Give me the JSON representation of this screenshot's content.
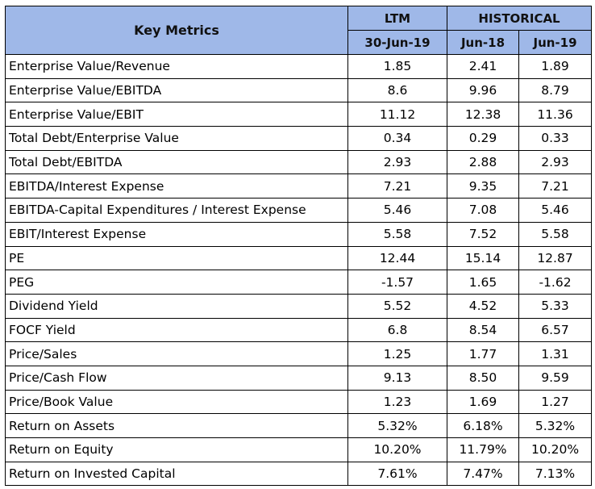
{
  "header": {
    "key_metrics": "Key Metrics",
    "ltm": "LTM",
    "historical": "HISTORICAL",
    "ltm_date": "30-Jun-19",
    "hist_col1": "Jun-18",
    "hist_col2": "Jun-19"
  },
  "rows": [
    {
      "metric": "Enterprise Value/Revenue",
      "ltm": "1.85",
      "jun18": "2.41",
      "jun19": "1.89"
    },
    {
      "metric": "Enterprise Value/EBITDA",
      "ltm": "8.6",
      "jun18": "9.96",
      "jun19": "8.79"
    },
    {
      "metric": "Enterprise Value/EBIT",
      "ltm": "11.12",
      "jun18": "12.38",
      "jun19": "11.36"
    },
    {
      "metric": "Total Debt/Enterprise Value",
      "ltm": "0.34",
      "jun18": "0.29",
      "jun19": "0.33"
    },
    {
      "metric": "Total Debt/EBITDA",
      "ltm": "2.93",
      "jun18": "2.88",
      "jun19": "2.93"
    },
    {
      "metric": "EBITDA/Interest Expense",
      "ltm": "7.21",
      "jun18": "9.35",
      "jun19": "7.21"
    },
    {
      "metric": "EBITDA-Capital Expenditures / Interest Expense",
      "ltm": "5.46",
      "jun18": "7.08",
      "jun19": "5.46"
    },
    {
      "metric": "EBIT/Interest Expense",
      "ltm": "5.58",
      "jun18": "7.52",
      "jun19": "5.58"
    },
    {
      "metric": "PE",
      "ltm": "12.44",
      "jun18": "15.14",
      "jun19": "12.87"
    },
    {
      "metric": "PEG",
      "ltm": "-1.57",
      "jun18": "1.65",
      "jun19": "-1.62"
    },
    {
      "metric": "Dividend Yield",
      "ltm": "5.52",
      "jun18": "4.52",
      "jun19": "5.33"
    },
    {
      "metric": "FOCF Yield",
      "ltm": "6.8",
      "jun18": "8.54",
      "jun19": "6.57"
    },
    {
      "metric": "Price/Sales",
      "ltm": "1.25",
      "jun18": "1.77",
      "jun19": "1.31"
    },
    {
      "metric": "Price/Cash Flow",
      "ltm": "9.13",
      "jun18": "8.50",
      "jun19": "9.59"
    },
    {
      "metric": "Price/Book Value",
      "ltm": "1.23",
      "jun18": "1.69",
      "jun19": "1.27"
    },
    {
      "metric": "Return on Assets",
      "ltm": "5.32%",
      "jun18": "6.18%",
      "jun19": "5.32%"
    },
    {
      "metric": "Return on Equity",
      "ltm": "10.20%",
      "jun18": "11.79%",
      "jun19": "10.20%"
    },
    {
      "metric": "Return on Invested Capital",
      "ltm": "7.61%",
      "jun18": "7.47%",
      "jun19": "7.13%"
    }
  ]
}
